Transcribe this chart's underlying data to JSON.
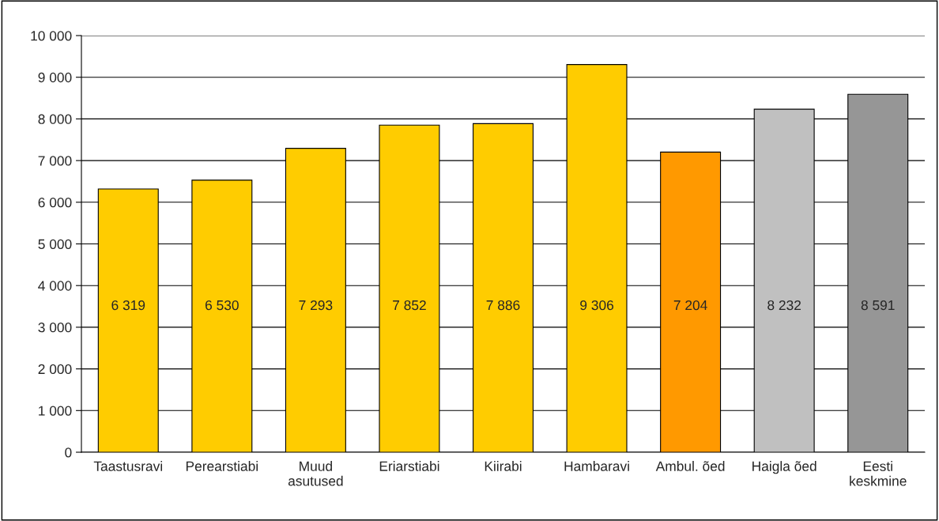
{
  "chart_data": {
    "type": "bar",
    "categories": [
      "Taastusravi",
      "Perearstiabi",
      "Muud\nasutused",
      "Eriarstiabi",
      "Kiirabi",
      "Hambaravi",
      "Ambul. õed",
      "Haigla õed",
      "Eesti\nkeskmine"
    ],
    "values": [
      6319,
      6530,
      7293,
      7852,
      7886,
      9306,
      7204,
      8232,
      8591
    ],
    "colors": [
      "#ffcc00",
      "#ffcc00",
      "#ffcc00",
      "#ffcc00",
      "#ffcc00",
      "#ffcc00",
      "#ff9900",
      "#c0c0c0",
      "#969696"
    ],
    "value_labels": [
      "6 319",
      "6 530",
      "7 293",
      "7 852",
      "7 886",
      "9 306",
      "7 204",
      "8 232",
      "8 591"
    ],
    "ylim": [
      0,
      10000
    ],
    "yticks": [
      0,
      {
        "value": 1000,
        "label": "1 000"
      },
      {
        "value": 2000,
        "label": "2 000"
      },
      {
        "value": 3000,
        "label": "3 000"
      },
      {
        "value": 4000,
        "label": "4 000"
      },
      {
        "value": 5000,
        "label": "5 000"
      },
      {
        "value": 6000,
        "label": "6 000"
      },
      {
        "value": 7000,
        "label": "7 000"
      },
      {
        "value": 8000,
        "label": "8 000"
      },
      {
        "value": 9000,
        "label": "9 000"
      },
      {
        "value": 10000,
        "label": "10 000"
      }
    ],
    "grid": "y"
  }
}
